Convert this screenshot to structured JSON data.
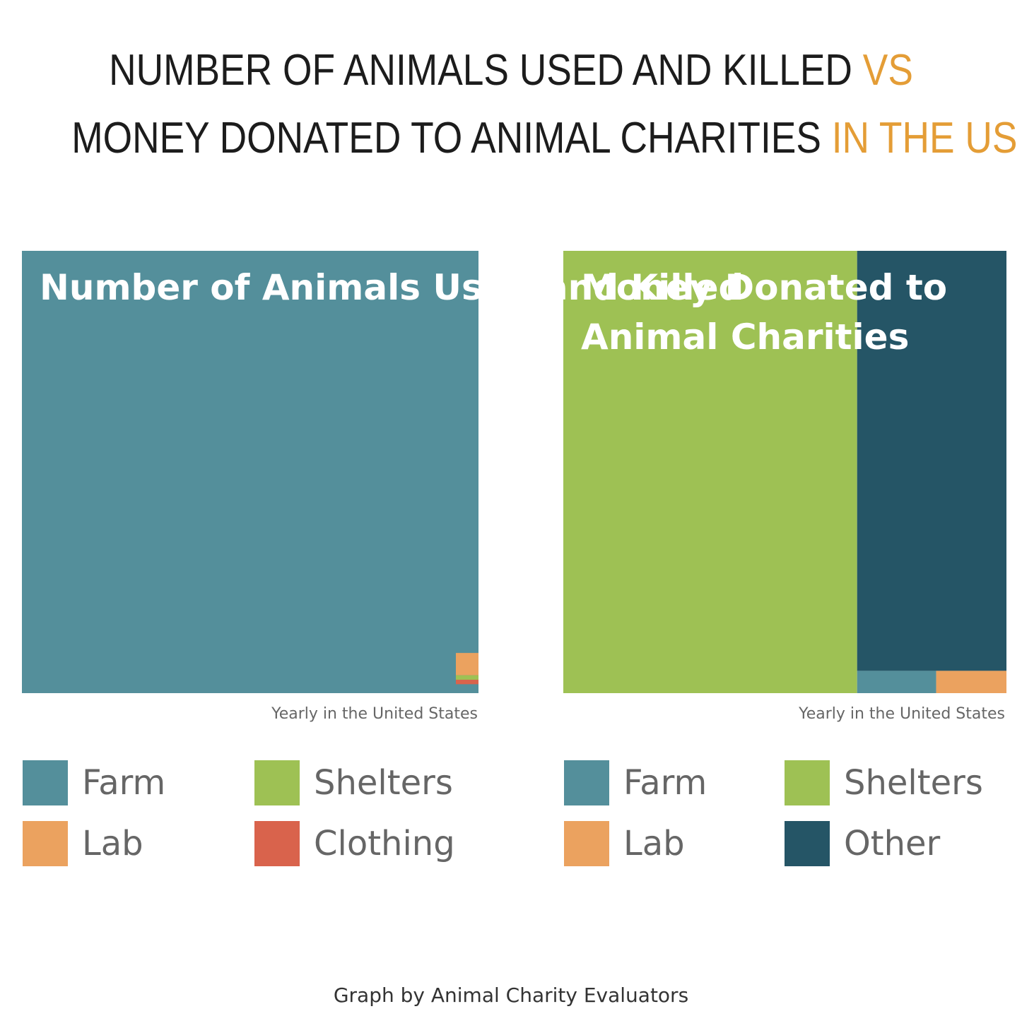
{
  "title": {
    "line1_main": "NUMBER OF ANIMALS USED AND KILLED",
    "line1_accent": "VS",
    "line2_main": "MONEY DONATED TO ANIMAL CHARITIES",
    "line2_accent": "IN THE US",
    "accent_color": "#e49d36"
  },
  "chart_data": [
    {
      "type": "treemap",
      "title": "Number of Animals Used and Killed",
      "caption": "Yearly in the United States",
      "segments": [
        {
          "name": "Farm",
          "share": 0.9955,
          "color": "#548f9b"
        },
        {
          "name": "Lab",
          "share": 0.0025,
          "color": "#eba25f"
        },
        {
          "name": "Shelters",
          "share": 0.0005,
          "color": "#9ec154"
        },
        {
          "name": "Clothing",
          "share": 0.0005,
          "color": "#d9634c"
        }
      ],
      "legend": [
        {
          "label": "Farm",
          "color": "#548f9b"
        },
        {
          "label": "Shelters",
          "color": "#9ec154"
        },
        {
          "label": "Lab",
          "color": "#eba25f"
        },
        {
          "label": "Clothing",
          "color": "#d9634c"
        }
      ]
    },
    {
      "type": "treemap",
      "title": "Money Donated to Animal Charities",
      "caption": "Yearly in the United States",
      "segments": [
        {
          "name": "Shelters",
          "share": 0.663,
          "color": "#9ec154"
        },
        {
          "name": "Other",
          "share": 0.32,
          "color": "#255566"
        },
        {
          "name": "Farm",
          "share": 0.009,
          "color": "#548f9b"
        },
        {
          "name": "Lab",
          "share": 0.008,
          "color": "#eba25f"
        }
      ],
      "legend": [
        {
          "label": "Farm",
          "color": "#548f9b"
        },
        {
          "label": "Shelters",
          "color": "#9ec154"
        },
        {
          "label": "Lab",
          "color": "#eba25f"
        },
        {
          "label": "Other",
          "color": "#255566"
        }
      ]
    }
  ],
  "footer": "Graph by Animal Charity Evaluators"
}
